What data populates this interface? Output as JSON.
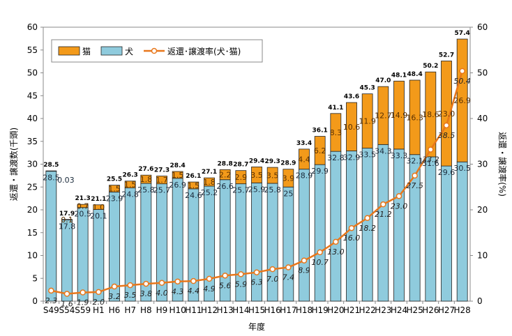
{
  "colors": {
    "cat": "#F39A1A",
    "dog": "#8FCBDD",
    "rate_line": "#E8771B",
    "rate_marker_fill": "#FFFFFF"
  },
  "chart_data": {
    "type": "bar",
    "stacked": true,
    "title": "",
    "xlabel": "年度",
    "ylabel": "返還・譲渡数(千頭)",
    "y2label": "返還・譲渡率(%)",
    "ylim": [
      0,
      60
    ],
    "y2lim": [
      0,
      60
    ],
    "yticks": [
      "0",
      "5",
      "10",
      "15",
      "20",
      "25",
      "30",
      "35",
      "40",
      "45",
      "50",
      "55",
      "60"
    ],
    "y2ticks": [
      "0",
      "10",
      "20",
      "30",
      "40",
      "50",
      "60"
    ],
    "categories": [
      "S49",
      "S54",
      "S59",
      "H1",
      "H6",
      "H7",
      "H8",
      "H9",
      "H10",
      "H11",
      "H12",
      "H13",
      "H14",
      "H15",
      "H16",
      "H17",
      "H18",
      "H19",
      "H20",
      "H21",
      "H22",
      "H23",
      "H24",
      "H25",
      "H26",
      "H27",
      "H28"
    ],
    "series": [
      {
        "name": "犬",
        "values": [
          28.5,
          17.8,
          20.5,
          20.1,
          23.9,
          24.8,
          25.8,
          25.7,
          26.9,
          24.6,
          25.2,
          26.6,
          25.7,
          25.9,
          25.8,
          25.0,
          28.9,
          29.9,
          32.8,
          32.9,
          33.5,
          34.3,
          33.3,
          32.1,
          31.6,
          29.6,
          30.5
        ]
      },
      {
        "name": "猫",
        "values": [
          "0.03",
          "0.1",
          "0.7",
          "1.0",
          "1.5",
          "1.5",
          "1.8",
          "1.7",
          "1.5",
          "1.5",
          "1.8",
          "2.2",
          "2.9",
          "3.5",
          "3.5",
          "3.9",
          "4.4",
          "6.2",
          "8.3",
          "10.6",
          "11.9",
          "12.7",
          "14.9",
          "16.3",
          "18.6",
          "23.0",
          "26.9"
        ]
      }
    ],
    "totals": [
      "28.5",
      "17.9",
      "21.3",
      "21.1",
      "25.5",
      "26.3",
      "27.6",
      "27.3",
      "28.4",
      "26.1",
      "27.1",
      "28.8",
      "28.7",
      "29.4",
      "29.3",
      "28.9",
      "33.4",
      "36.1",
      "41.1",
      "43.6",
      "45.3",
      "47.0",
      "48.1",
      "48.4",
      "50.2",
      "52.7",
      "57.4"
    ],
    "line": {
      "name": "返還・譲渡率(犬･猫)",
      "axis": "right",
      "values": [
        "2.3",
        "1.6",
        "1.9",
        "2.0",
        "3.2",
        "3.5",
        "3.8",
        "4.0",
        "4.3",
        "4.4",
        "4.9",
        "5.6",
        "5.9",
        "6.3",
        "7.0",
        "7.4",
        "8.9",
        "10.7",
        "13.0",
        "16.0",
        "18.2",
        "21.2",
        "23.0",
        "27.5",
        "33.2",
        "38.5",
        "50.4"
      ]
    },
    "legend": {
      "position": "top-left",
      "items": [
        {
          "label": "猫",
          "kind": "cat"
        },
        {
          "label": "犬",
          "kind": "dog"
        },
        {
          "label": "返還･譲渡率(犬･猫)",
          "kind": "rate"
        }
      ]
    },
    "grid": false
  }
}
